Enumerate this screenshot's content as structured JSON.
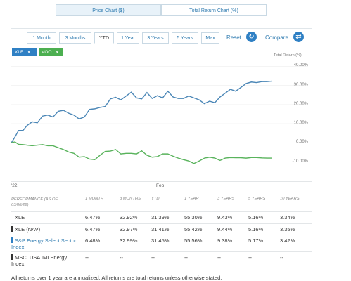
{
  "chart_tabs": [
    {
      "label": "Price Chart ($)",
      "active": true
    },
    {
      "label": "Total Return Chart (%)",
      "active": false
    }
  ],
  "range_tabs": [
    {
      "label": "1 Month"
    },
    {
      "label": "3 Months"
    },
    {
      "label": "YTD",
      "active": true
    },
    {
      "label": "1 Year"
    },
    {
      "label": "3 Years"
    },
    {
      "label": "5 Years"
    },
    {
      "label": "Max"
    }
  ],
  "reset_label": "Reset",
  "compare_label": "Compare",
  "chips": [
    {
      "label": "XLE",
      "remove": "x",
      "color": "#2f80c4"
    },
    {
      "label": "VOO",
      "remove": "x",
      "color": "#4caf50"
    }
  ],
  "colors": {
    "accent": "#2f7bb0",
    "xle_line": "#4a86b6",
    "voo_line": "#59b35c"
  },
  "chart_data": {
    "type": "line",
    "y_axis_title": "Total Return (%)",
    "ylim": [
      -12,
      42
    ],
    "y_ticks": [
      "40.00%",
      "30.00%",
      "20.00%",
      "10.00%",
      "0.00%",
      "-10.00%"
    ],
    "x_labels": [
      "'22",
      "Feb"
    ],
    "x_range": [
      0,
      1
    ],
    "series": [
      {
        "name": "XLE",
        "color": "#4a86b6",
        "x": [
          0,
          0.014,
          0.028,
          0.045,
          0.06,
          0.08,
          0.1,
          0.12,
          0.14,
          0.16,
          0.18,
          0.2,
          0.22,
          0.24,
          0.26,
          0.28,
          0.3,
          0.32,
          0.34,
          0.36,
          0.38,
          0.4,
          0.42,
          0.44,
          0.46,
          0.48,
          0.5,
          0.52,
          0.54,
          0.56,
          0.58,
          0.6,
          0.62,
          0.64,
          0.66,
          0.68,
          0.7,
          0.72,
          0.74,
          0.76,
          0.78,
          0.8,
          0.82,
          0.84,
          0.86,
          0.88,
          0.9,
          0.92,
          0.94,
          0.96,
          0.98,
          1.0
        ],
        "values": [
          0,
          3,
          6.5,
          6.5,
          9,
          11,
          10.5,
          14,
          14.5,
          13.5,
          16.5,
          17,
          15.5,
          14.5,
          12.5,
          13.5,
          17.5,
          17.8,
          18.5,
          19,
          23,
          23.8,
          22.5,
          24.5,
          26.5,
          23.5,
          23,
          26.3,
          23.2,
          24.7,
          23.5,
          27,
          24,
          23.2,
          23.2,
          24.5,
          23.5,
          22.5,
          20.5,
          21.8,
          21,
          24,
          26,
          28,
          27,
          29,
          31,
          31.8,
          31.5,
          32,
          32,
          32.3
        ]
      },
      {
        "name": "VOO",
        "color": "#59b35c",
        "x": [
          0,
          0.014,
          0.028,
          0.045,
          0.06,
          0.08,
          0.1,
          0.12,
          0.14,
          0.16,
          0.18,
          0.2,
          0.22,
          0.24,
          0.26,
          0.28,
          0.3,
          0.32,
          0.34,
          0.36,
          0.38,
          0.4,
          0.42,
          0.44,
          0.46,
          0.48,
          0.5,
          0.52,
          0.54,
          0.56,
          0.58,
          0.6,
          0.62,
          0.64,
          0.66,
          0.68,
          0.7,
          0.72,
          0.74,
          0.76,
          0.78,
          0.8,
          0.82,
          0.84,
          0.86,
          0.88,
          0.9,
          0.92,
          0.94,
          0.96,
          0.98,
          1.0
        ],
        "values": [
          0,
          0.5,
          -0.8,
          -0.9,
          -1.2,
          -1.5,
          -1.2,
          -0.9,
          -1.5,
          -1.5,
          -2.5,
          -3.5,
          -4.8,
          -5.5,
          -7.5,
          -7.2,
          -8.5,
          -8.8,
          -6.5,
          -4.5,
          -4.3,
          -3.5,
          -5.8,
          -5.5,
          -5.5,
          -5.8,
          -4.2,
          -6.5,
          -7.5,
          -7.2,
          -5.8,
          -5.8,
          -7,
          -8,
          -8.8,
          -9.5,
          -10.8,
          -9.5,
          -8,
          -7.5,
          -8,
          -9.2,
          -8,
          -7.7,
          -7.8,
          -7.8,
          -8,
          -7.7,
          -7.7,
          -7.9,
          -8,
          -8
        ]
      }
    ]
  },
  "table": {
    "headers": [
      "PERFORMANCE (as of 03/08/22)",
      "1 MONTH",
      "3 MONTHS",
      "YTD",
      "1 YEAR",
      "3 YEARS",
      "5 YEARS",
      "10 YEARS"
    ],
    "rows": [
      {
        "name": "XLE",
        "swatch": "",
        "values": [
          "6.47%",
          "32.92%",
          "31.39%",
          "55.30%",
          "9.43%",
          "5.16%",
          "3.34%"
        ]
      },
      {
        "name": "XLE (NAV)",
        "swatch": "#333333",
        "values": [
          "6.47%",
          "32.97%",
          "31.41%",
          "55.42%",
          "9.44%",
          "5.16%",
          "3.35%"
        ]
      },
      {
        "name": "S&P Energy Select Sector Index",
        "swatch": "#2f80c4",
        "values": [
          "6.48%",
          "32.99%",
          "31.45%",
          "55.56%",
          "9.38%",
          "5.17%",
          "3.42%"
        ]
      },
      {
        "name": "MSCI USA IMI Energy Index",
        "swatch": "#333333",
        "values": [
          "--",
          "--",
          "--",
          "--",
          "--",
          "--",
          "--"
        ]
      }
    ]
  },
  "footnote": "All returns over 1 year are annualized. All returns are total returns unless otherwise stated."
}
